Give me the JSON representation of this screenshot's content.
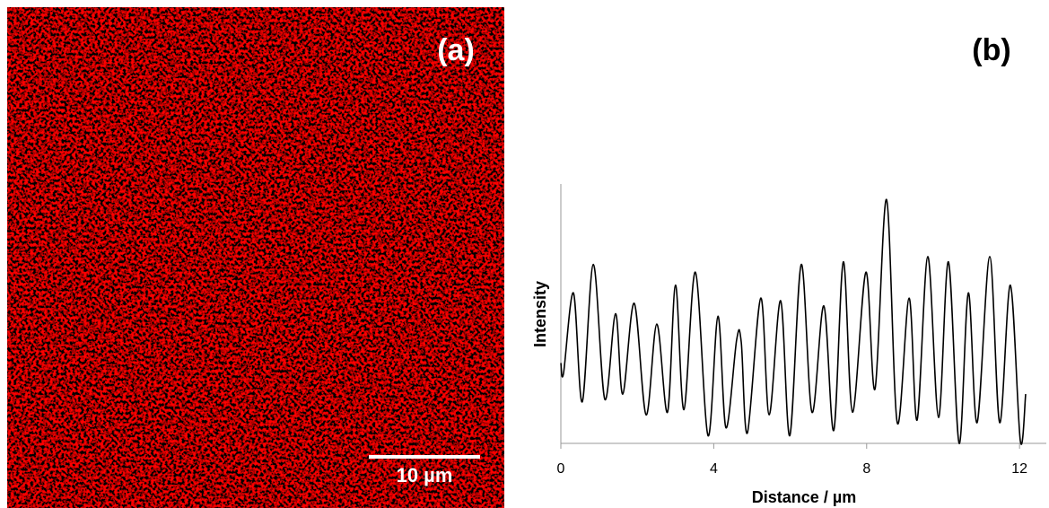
{
  "image_panel": {
    "label": "(a)",
    "scale_bar": "10 µm"
  },
  "chart_data": {
    "type": "line",
    "label": "(b)",
    "x_label": "Distance / µm",
    "y_label": "Intensity",
    "x": [
      0,
      0.07,
      0.33,
      0.56,
      0.85,
      1.15,
      1.43,
      1.62,
      1.92,
      2.23,
      2.51,
      2.79,
      3.0,
      3.22,
      3.52,
      3.85,
      4.11,
      4.32,
      4.6,
      4.72,
      4.88,
      5.23,
      5.45,
      5.75,
      5.99,
      6.29,
      6.57,
      6.88,
      7.14,
      7.39,
      7.63,
      7.98,
      8.22,
      8.52,
      8.8,
      9.11,
      9.32,
      9.6,
      9.88,
      10.14,
      10.42,
      10.66,
      10.89,
      11.22,
      11.48,
      11.76,
      12.02,
      12.16
    ],
    "values": [
      31,
      27,
      58,
      16,
      69,
      17,
      50,
      19,
      54,
      11,
      46,
      12,
      61,
      13,
      66,
      3,
      49,
      6,
      40,
      39,
      4,
      56,
      11,
      55,
      3,
      69,
      12,
      53,
      5,
      70,
      12,
      66,
      21,
      94,
      8,
      56,
      9,
      72,
      10,
      70,
      0,
      58,
      8,
      72,
      8,
      61,
      1,
      19
    ],
    "color": "#000000",
    "xlim": [
      0,
      12.7
    ],
    "xticks": [
      0,
      4,
      8,
      12
    ],
    "ylim": [
      0,
      100
    ]
  }
}
